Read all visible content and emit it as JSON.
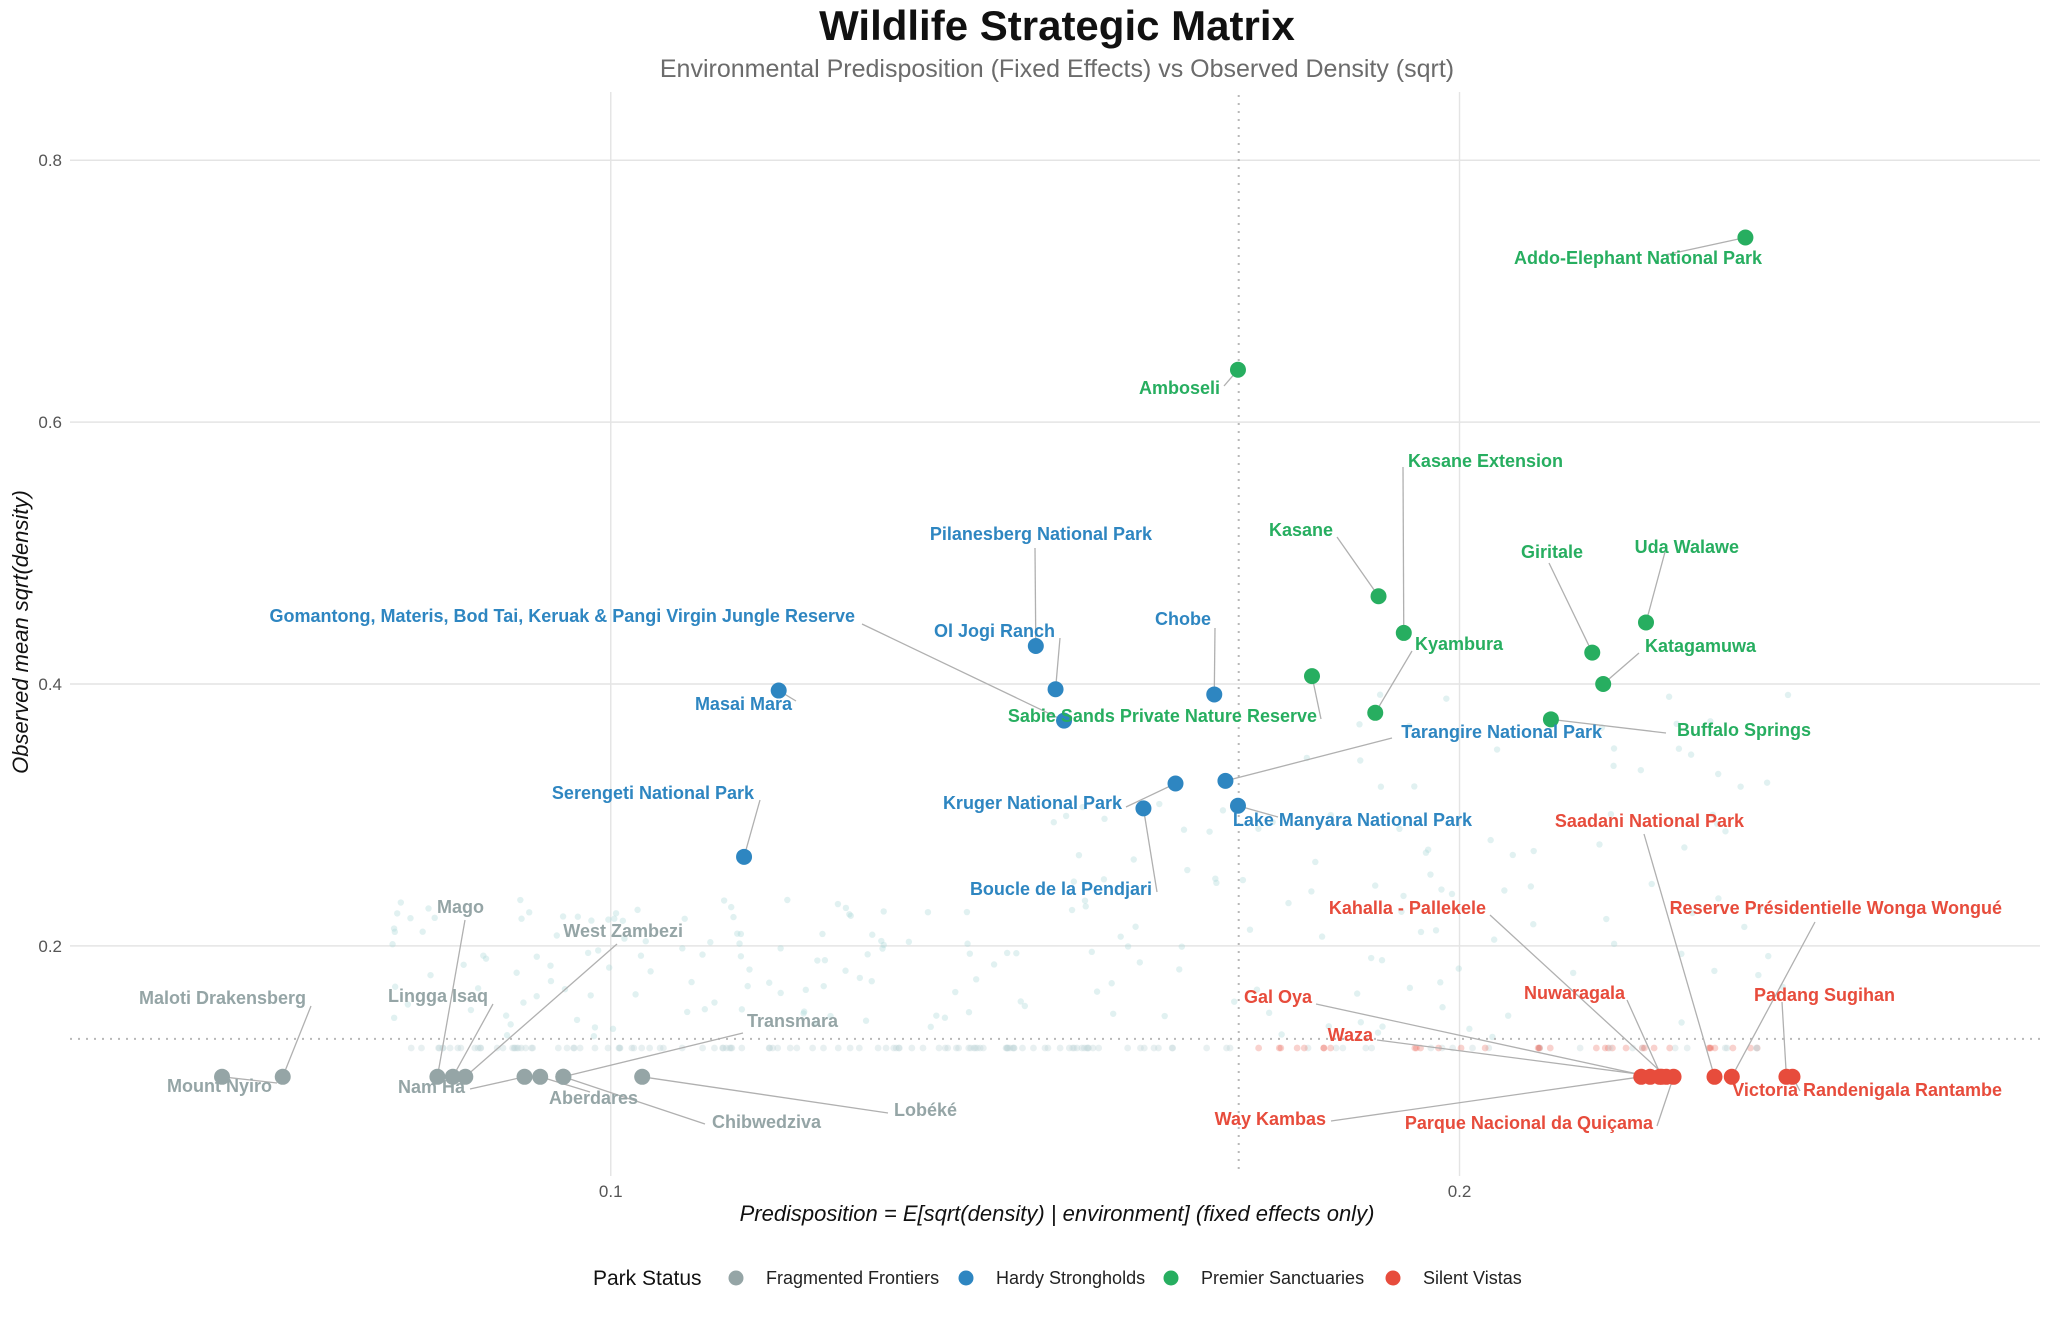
{
  "chart_data": {
    "type": "scatter",
    "title": "Wildlife Strategic Matrix",
    "subtitle": "Environmental Predisposition (Fixed Effects) vs Observed Density (sqrt)",
    "xlabel": "Predisposition = E[sqrt(density) | environment] (fixed effects only)",
    "ylabel": "Observed mean sqrt(density)",
    "x_scale": "log10",
    "xlim": [
      0.0643,
      0.3213
    ],
    "ylim": [
      0.0166,
      0.8399
    ],
    "x_ticks": [
      {
        "value": 0.1,
        "label": "0.1"
      },
      {
        "value": 0.2,
        "label": "0.2"
      }
    ],
    "y_ticks": [
      {
        "value": 0.2,
        "label": "0.2"
      },
      {
        "value": 0.4,
        "label": "0.4"
      },
      {
        "value": 0.6,
        "label": "0.6"
      },
      {
        "value": 0.8,
        "label": "0.8"
      }
    ],
    "reference_lines": {
      "x": 0.167,
      "y": 0.129
    },
    "grid": true,
    "legend": {
      "title": "Park Status",
      "position": "bottom"
    },
    "colors": {
      "Fragmented Frontiers": "#95a5a6",
      "Hardy Strongholds": "#2e86c1",
      "Premier Sanctuaries": "#27ae60",
      "Silent Vistas": "#e74c3c"
    },
    "series": [
      {
        "name": "Fragmented Frontiers",
        "points": [
          {
            "label": "Mount Nyiro",
            "x": 0.0728,
            "y": 0.1
          },
          {
            "label": "Maloti Drakensberg",
            "x": 0.0765,
            "y": 0.1
          },
          {
            "label": "Mago",
            "x": 0.0868,
            "y": 0.1
          },
          {
            "label": "Lingga Isaq",
            "x": 0.0879,
            "y": 0.1
          },
          {
            "label": "West Zambezi",
            "x": 0.0888,
            "y": 0.1
          },
          {
            "label": "Nam Ha",
            "x": 0.0932,
            "y": 0.1
          },
          {
            "label": "Aberdares",
            "x": 0.0944,
            "y": 0.1
          },
          {
            "label": "Chibwedziva",
            "x": 0.0962,
            "y": 0.1
          },
          {
            "label": "Transmara",
            "x": 0.0962,
            "y": 0.1
          },
          {
            "label": "Lobéké",
            "x": 0.1026,
            "y": 0.1
          }
        ]
      },
      {
        "name": "Hardy Strongholds",
        "points": [
          {
            "label": "Serengeti National Park",
            "x": 0.1115,
            "y": 0.268
          },
          {
            "label": "Masai Mara",
            "x": 0.1147,
            "y": 0.395
          },
          {
            "label": "Pilanesberg National Park",
            "x": 0.1415,
            "y": 0.429
          },
          {
            "label": "Ol Jogi Ranch",
            "x": 0.1438,
            "y": 0.396
          },
          {
            "label": "Gomantong, Materis, Bod Tai, Keruak & Pangi Virgin Jungle Reserve",
            "x": 0.1448,
            "y": 0.372
          },
          {
            "label": "Boucle de la Pendjari",
            "x": 0.1545,
            "y": 0.305
          },
          {
            "label": "Kruger National Park",
            "x": 0.1586,
            "y": 0.324
          },
          {
            "label": "Chobe",
            "x": 0.1637,
            "y": 0.392
          },
          {
            "label": "Tarangire National Park",
            "x": 0.1652,
            "y": 0.326
          },
          {
            "label": "Lake Manyara National Park",
            "x": 0.1669,
            "y": 0.307
          }
        ]
      },
      {
        "name": "Premier Sanctuaries",
        "points": [
          {
            "label": "Amboseli",
            "x": 0.1669,
            "y": 0.64
          },
          {
            "label": "Sabie Sands Private Nature Reserve",
            "x": 0.1773,
            "y": 0.406
          },
          {
            "label": "Kyambura",
            "x": 0.1867,
            "y": 0.378
          },
          {
            "label": "Kasane",
            "x": 0.1872,
            "y": 0.467
          },
          {
            "label": "Kasane Extension",
            "x": 0.1911,
            "y": 0.439
          },
          {
            "label": "Buffalo Springs",
            "x": 0.2155,
            "y": 0.373
          },
          {
            "label": "Giritale",
            "x": 0.2229,
            "y": 0.424
          },
          {
            "label": "Katagamuwa",
            "x": 0.2249,
            "y": 0.4
          },
          {
            "label": "Uda Walawe",
            "x": 0.2329,
            "y": 0.447
          },
          {
            "label": "Addo-Elephant National Park",
            "x": 0.2526,
            "y": 0.741
          }
        ]
      },
      {
        "name": "Silent Vistas",
        "points": [
          {
            "label": "Way Kambas",
            "x": 0.232,
            "y": 0.1
          },
          {
            "label": "Gal Oya",
            "x": 0.2337,
            "y": 0.1
          },
          {
            "label": "Waza",
            "x": 0.2355,
            "y": 0.1
          },
          {
            "label": "Nuwaragala",
            "x": 0.2359,
            "y": 0.1
          },
          {
            "label": "Kahalla - Pallekele",
            "x": 0.2368,
            "y": 0.1
          },
          {
            "label": "Parque Nacional da Quiçama",
            "x": 0.2382,
            "y": 0.1
          },
          {
            "label": "Saadani National Park",
            "x": 0.2463,
            "y": 0.1
          },
          {
            "label": "Reserve Présidentielle Wonga Wongué",
            "x": 0.2498,
            "y": 0.1
          },
          {
            "label": "Padang Sugihan",
            "x": 0.2612,
            "y": 0.1
          },
          {
            "label": "Victoria Randenigala Rantambe",
            "x": 0.2625,
            "y": 0.1
          }
        ]
      }
    ]
  }
}
